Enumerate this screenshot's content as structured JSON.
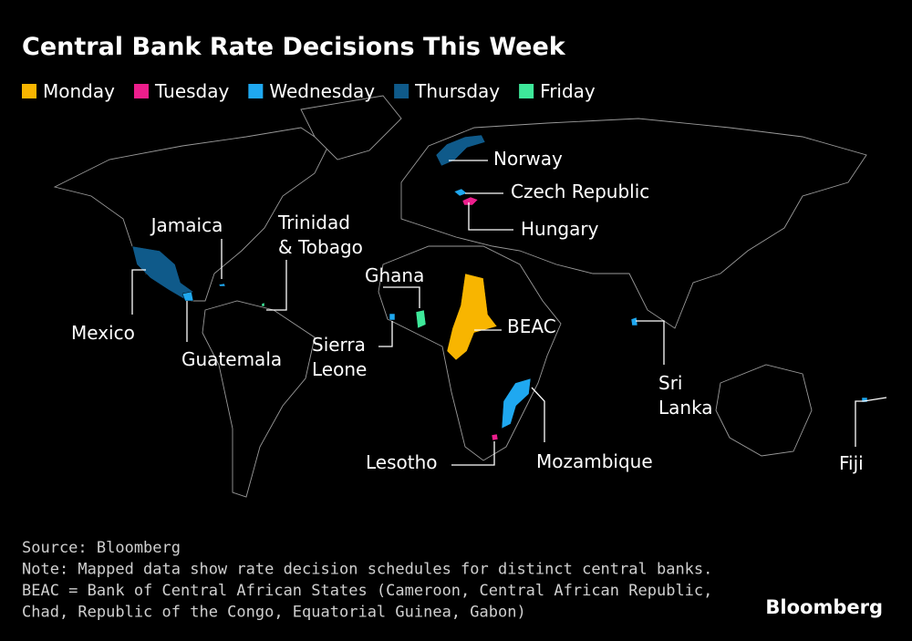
{
  "header": {
    "title": "Central Bank Rate Decisions This Week"
  },
  "legend": [
    {
      "label": "Monday",
      "color": "#f8b500"
    },
    {
      "label": "Tuesday",
      "color": "#ec1e8c"
    },
    {
      "label": "Wednesday",
      "color": "#1fa8f0"
    },
    {
      "label": "Thursday",
      "color": "#0f5a8a"
    },
    {
      "label": "Friday",
      "color": "#3ee89a"
    }
  ],
  "map": {
    "countries": [
      {
        "label_lines": [
          "Norway"
        ],
        "day": "Thursday"
      },
      {
        "label_lines": [
          "Czech Republic"
        ],
        "day": "Wednesday"
      },
      {
        "label_lines": [
          "Hungary"
        ],
        "day": "Tuesday"
      },
      {
        "label_lines": [
          "Jamaica"
        ],
        "day": "Wednesday"
      },
      {
        "label_lines": [
          "Trinidad",
          "& Tobago"
        ],
        "day": "Friday"
      },
      {
        "label_lines": [
          "Mexico"
        ],
        "day": "Thursday"
      },
      {
        "label_lines": [
          "Guatemala"
        ],
        "day": "Wednesday"
      },
      {
        "label_lines": [
          "Ghana"
        ],
        "day": "Friday"
      },
      {
        "label_lines": [
          "Sierra",
          "Leone"
        ],
        "day": "Wednesday"
      },
      {
        "label_lines": [
          "BEAC"
        ],
        "day": "Monday"
      },
      {
        "label_lines": [
          "Sri",
          "Lanka"
        ],
        "day": "Wednesday"
      },
      {
        "label_lines": [
          "Mozambique"
        ],
        "day": "Wednesday"
      },
      {
        "label_lines": [
          "Lesotho"
        ],
        "day": "Tuesday"
      },
      {
        "label_lines": [
          "Fiji"
        ],
        "day": "Wednesday"
      }
    ]
  },
  "footer": {
    "lines": [
      "Source: Bloomberg",
      "Note: Mapped data show rate decision schedules for distinct central banks.",
      "BEAC = Bank of Central African States (Cameroon, Central African Republic,",
      "Chad, Republic of the Congo, Equatorial Guinea, Gabon)"
    ],
    "brand": "Bloomberg"
  }
}
